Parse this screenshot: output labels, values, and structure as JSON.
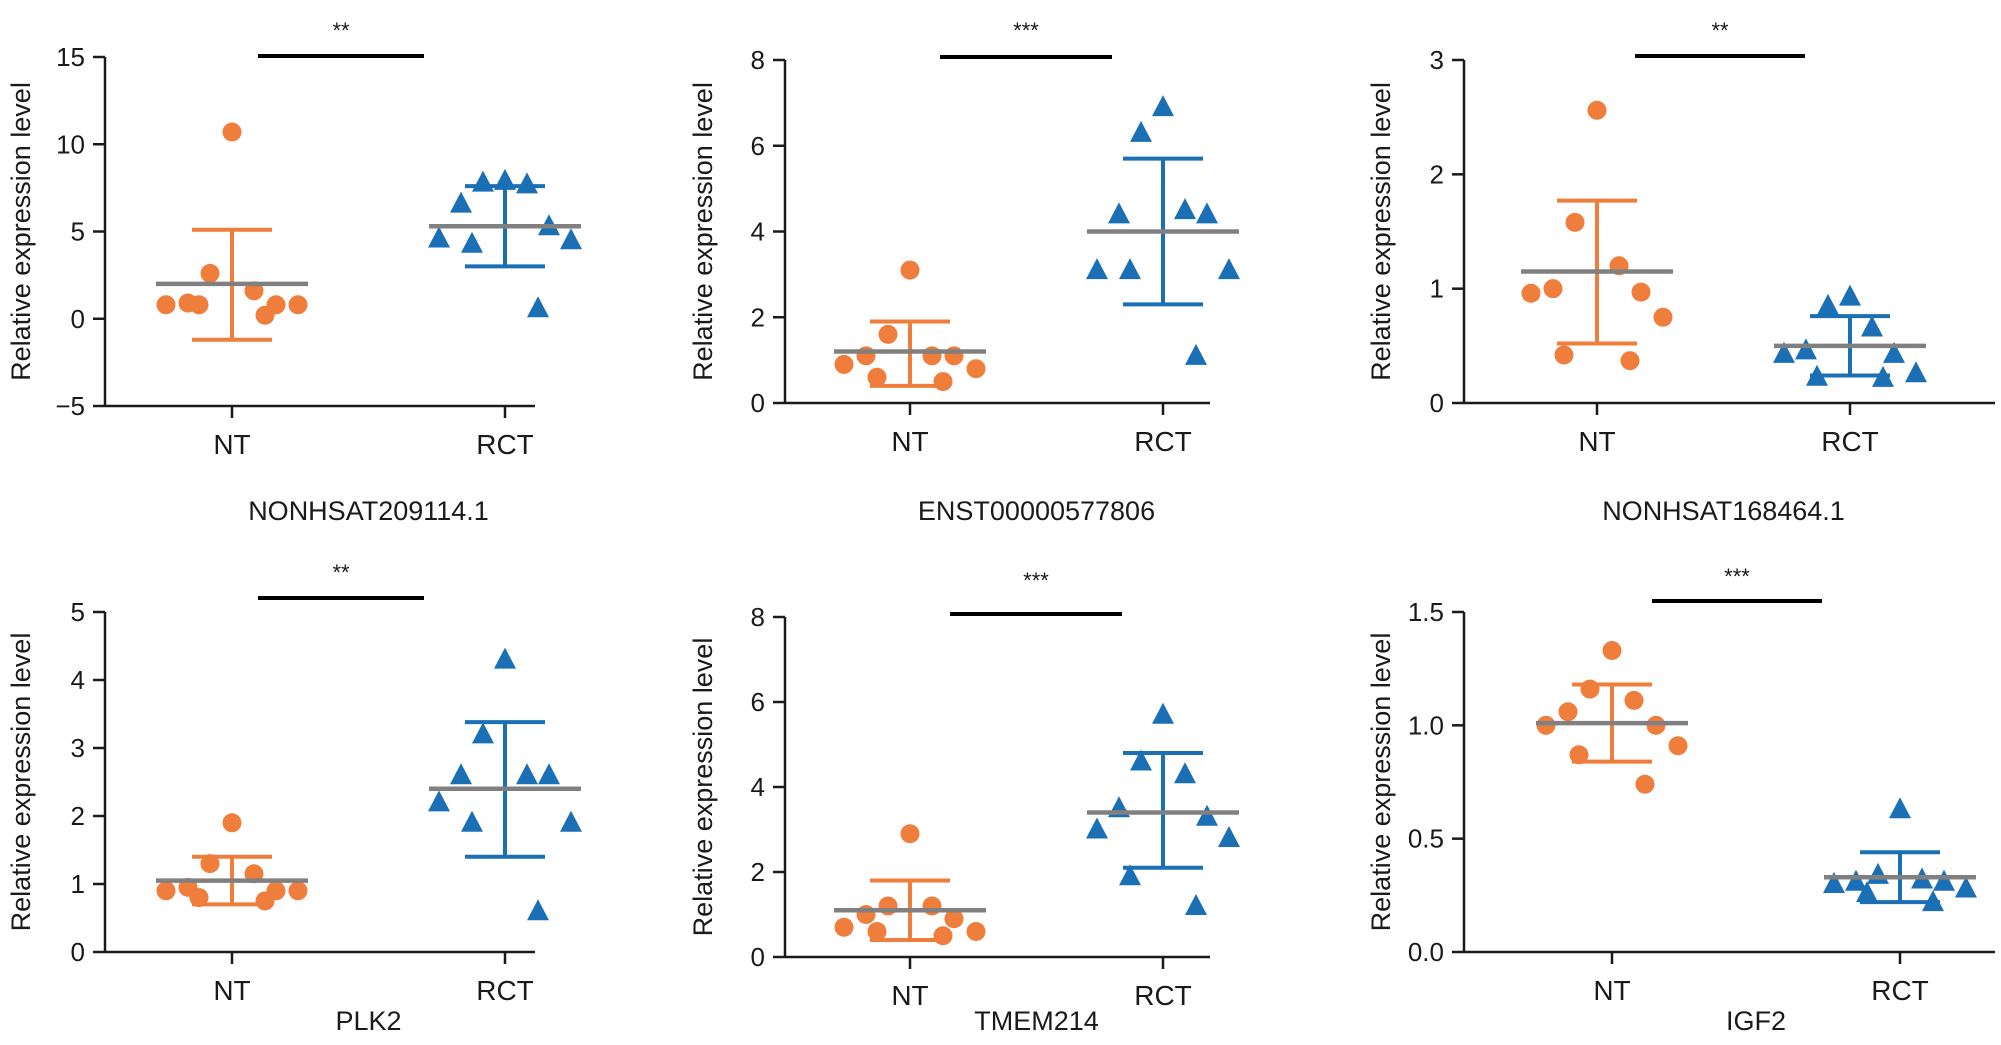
{
  "figure": {
    "colors": {
      "nt": "#ef7d3c",
      "rct": "#1b6fb5",
      "mean_line": "#808080",
      "axis": "#1a1a1a",
      "bracket": "#000000"
    },
    "y_axis_label": "Relative expression level"
  },
  "chart_data": [
    {
      "type": "scatter",
      "title": "NONHSAT209114.1",
      "ylabel": "Relative expression level",
      "ylim": [
        -5,
        15
      ],
      "yticks": [
        "−5",
        "0",
        "5",
        "10",
        "15"
      ],
      "ytick_values": [
        -5,
        0,
        5,
        10,
        15
      ],
      "categories": [
        "NT",
        "RCT"
      ],
      "significance": "**",
      "series": [
        {
          "name": "NT",
          "marker": "circle",
          "values": [
            10.7,
            2.6,
            1.6,
            0.9,
            0.8,
            0.8,
            0.8,
            0.8,
            0.2
          ],
          "mean": 2.0,
          "sd_upper": 5.1,
          "sd_lower": -1.2
        },
        {
          "name": "RCT",
          "marker": "triangle",
          "values": [
            7.9,
            7.8,
            7.7,
            6.6,
            5.3,
            4.6,
            4.5,
            4.3,
            0.6
          ],
          "mean": 5.3,
          "sd_upper": 7.6,
          "sd_lower": 3.0
        }
      ]
    },
    {
      "type": "scatter",
      "title": "ENST00000577806",
      "ylabel": "Relative expression level",
      "ylim": [
        0,
        8
      ],
      "yticks": [
        "0",
        "2",
        "4",
        "6",
        "8"
      ],
      "ytick_values": [
        0,
        2,
        4,
        6,
        8
      ],
      "categories": [
        "NT",
        "RCT"
      ],
      "significance": "***",
      "series": [
        {
          "name": "NT",
          "marker": "circle",
          "values": [
            3.1,
            1.6,
            1.1,
            1.1,
            1.1,
            0.9,
            0.8,
            0.6,
            0.5
          ],
          "mean": 1.2,
          "sd_upper": 1.9,
          "sd_lower": 0.4
        },
        {
          "name": "RCT",
          "marker": "triangle",
          "values": [
            6.9,
            6.3,
            4.5,
            4.4,
            4.4,
            3.1,
            3.1,
            3.1,
            1.1
          ],
          "mean": 4.0,
          "sd_upper": 5.7,
          "sd_lower": 2.3
        }
      ]
    },
    {
      "type": "scatter",
      "title": "NONHSAT168464.1",
      "ylabel": "Relative expression level",
      "ylim": [
        0,
        3
      ],
      "yticks": [
        "0",
        "1",
        "2",
        "3"
      ],
      "ytick_values": [
        0,
        1,
        2,
        3
      ],
      "categories": [
        "NT",
        "RCT"
      ],
      "significance": "**",
      "series": [
        {
          "name": "NT",
          "marker": "circle",
          "values": [
            2.56,
            1.58,
            1.2,
            1.0,
            0.97,
            0.96,
            0.75,
            0.42,
            0.37
          ],
          "mean": 1.15,
          "sd_upper": 1.77,
          "sd_lower": 0.52
        },
        {
          "name": "RCT",
          "marker": "triangle",
          "values": [
            0.93,
            0.85,
            0.66,
            0.46,
            0.43,
            0.43,
            0.26,
            0.23,
            0.22
          ],
          "mean": 0.5,
          "sd_upper": 0.76,
          "sd_lower": 0.24
        }
      ]
    },
    {
      "type": "scatter",
      "title": "PLK2",
      "ylabel": "Relative expression level",
      "ylim": [
        0,
        5
      ],
      "yticks": [
        "0",
        "1",
        "2",
        "3",
        "4",
        "5"
      ],
      "ytick_values": [
        0,
        1,
        2,
        3,
        4,
        5
      ],
      "categories": [
        "NT",
        "RCT"
      ],
      "significance": "**",
      "series": [
        {
          "name": "NT",
          "marker": "circle",
          "values": [
            1.9,
            1.3,
            1.15,
            0.95,
            0.9,
            0.9,
            0.9,
            0.8,
            0.75
          ],
          "mean": 1.05,
          "sd_upper": 1.4,
          "sd_lower": 0.7
        },
        {
          "name": "RCT",
          "marker": "triangle",
          "values": [
            4.3,
            3.2,
            2.6,
            2.6,
            2.6,
            2.2,
            1.9,
            1.9,
            0.6
          ],
          "mean": 2.4,
          "sd_upper": 3.38,
          "sd_lower": 1.4
        }
      ]
    },
    {
      "type": "scatter",
      "title": "TMEM214",
      "ylabel": "Relative expression level",
      "ylim": [
        0,
        8
      ],
      "yticks": [
        "0",
        "2",
        "4",
        "6",
        "8"
      ],
      "ytick_values": [
        0,
        2,
        4,
        6,
        8
      ],
      "categories": [
        "NT",
        "RCT"
      ],
      "significance": "***",
      "series": [
        {
          "name": "NT",
          "marker": "circle",
          "values": [
            2.9,
            1.2,
            1.2,
            1.0,
            0.9,
            0.7,
            0.6,
            0.6,
            0.5
          ],
          "mean": 1.1,
          "sd_upper": 1.8,
          "sd_lower": 0.4
        },
        {
          "name": "RCT",
          "marker": "triangle",
          "values": [
            5.7,
            4.6,
            4.3,
            3.5,
            3.3,
            3.0,
            2.8,
            1.9,
            1.2
          ],
          "mean": 3.4,
          "sd_upper": 4.8,
          "sd_lower": 2.1
        }
      ]
    },
    {
      "type": "scatter",
      "title": "IGF2",
      "ylabel": "Relative expression level",
      "ylim": [
        0,
        1.5
      ],
      "yticks": [
        "0.0",
        "0.5",
        "1.0",
        "1.5"
      ],
      "ytick_values": [
        0,
        0.5,
        1.0,
        1.5
      ],
      "categories": [
        "NT",
        "RCT"
      ],
      "significance": "***",
      "series": [
        {
          "name": "NT",
          "marker": "circle",
          "values": [
            1.33,
            1.16,
            1.11,
            1.06,
            1.0,
            1.0,
            0.91,
            0.87,
            0.74
          ],
          "mean": 1.01,
          "sd_upper": 1.18,
          "sd_lower": 0.84
        },
        {
          "name": "RCT",
          "marker": "triangle",
          "values": [
            0.63,
            0.34,
            0.32,
            0.31,
            0.31,
            0.3,
            0.28,
            0.26,
            0.22
          ],
          "mean": 0.33,
          "sd_upper": 0.44,
          "sd_lower": 0.22
        }
      ]
    }
  ]
}
